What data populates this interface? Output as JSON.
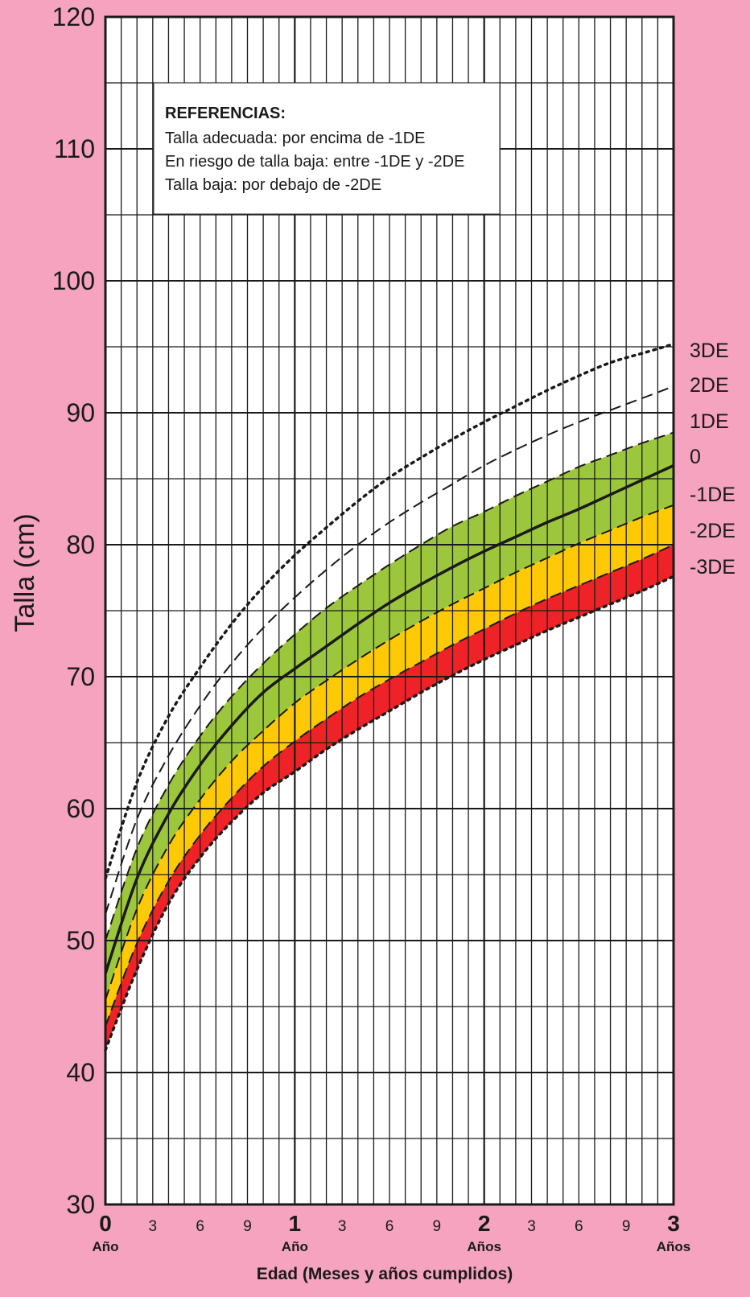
{
  "chart_data": {
    "type": "line",
    "ylabel": "Talla (cm)",
    "xlabel": "Edad (Meses y años cumplidos)",
    "ylim": [
      30,
      120
    ],
    "xlim": [
      0,
      36
    ],
    "yticks": [
      "30",
      "40",
      "50",
      "60",
      "70",
      "80",
      "90",
      "100",
      "110",
      "120"
    ],
    "xticks_major": [
      {
        "month": 0,
        "label": "0",
        "sub": "Año"
      },
      {
        "month": 12,
        "label": "1",
        "sub": "Año"
      },
      {
        "month": 24,
        "label": "2",
        "sub": "Años"
      },
      {
        "month": 36,
        "label": "3",
        "sub": "Años"
      }
    ],
    "xticks_minor": [
      {
        "month": 3,
        "label": "3"
      },
      {
        "month": 6,
        "label": "6"
      },
      {
        "month": 9,
        "label": "9"
      },
      {
        "month": 15,
        "label": "3"
      },
      {
        "month": 18,
        "label": "6"
      },
      {
        "month": 21,
        "label": "9"
      },
      {
        "month": 27,
        "label": "3"
      },
      {
        "month": 30,
        "label": "6"
      },
      {
        "month": 33,
        "label": "9"
      }
    ],
    "grid": true,
    "x": [
      0,
      2,
      4,
      6,
      8,
      10,
      12,
      14,
      16,
      18,
      20,
      22,
      24,
      26,
      28,
      30,
      32,
      34,
      36
    ],
    "series": [
      {
        "name": "3DE",
        "style": "dotted",
        "values": [
          54.7,
          62.0,
          67.0,
          70.7,
          74.0,
          76.8,
          79.2,
          81.3,
          83.3,
          85.1,
          86.6,
          88.0,
          89.3,
          90.5,
          91.7,
          92.8,
          93.8,
          94.5,
          95.2
        ]
      },
      {
        "name": "2DE",
        "style": "dashed",
        "values": [
          52.0,
          59.2,
          64.0,
          67.8,
          71.0,
          73.7,
          76.0,
          78.1,
          80.0,
          81.7,
          83.2,
          84.6,
          86.0,
          87.2,
          88.3,
          89.3,
          90.2,
          91.1,
          92.0
        ]
      },
      {
        "name": "1DE",
        "style": "dashed",
        "values": [
          50.0,
          57.0,
          61.8,
          65.5,
          68.5,
          71.0,
          73.2,
          75.2,
          76.9,
          78.5,
          80.0,
          81.4,
          82.5,
          83.7,
          84.8,
          85.9,
          86.8,
          87.7,
          88.5
        ]
      },
      {
        "name": "0",
        "style": "solid",
        "values": [
          47.5,
          54.7,
          59.6,
          63.3,
          66.3,
          68.8,
          70.6,
          72.3,
          74.0,
          75.6,
          77.0,
          78.3,
          79.5,
          80.6,
          81.7,
          82.7,
          83.8,
          84.9,
          86.0
        ]
      },
      {
        "name": "-1DE",
        "style": "dashed",
        "values": [
          45.5,
          52.4,
          57.2,
          60.7,
          63.6,
          65.9,
          68.0,
          69.7,
          71.3,
          72.8,
          74.2,
          75.5,
          76.7,
          77.9,
          79.0,
          80.1,
          81.1,
          82.1,
          83.0
        ]
      },
      {
        "name": "-2DE",
        "style": "dashed",
        "values": [
          43.5,
          49.8,
          54.5,
          58.0,
          60.8,
          63.2,
          65.1,
          66.8,
          68.4,
          69.8,
          71.1,
          72.4,
          73.6,
          74.8,
          75.9,
          76.9,
          77.9,
          78.9,
          80.0
        ]
      },
      {
        "name": "-3DE",
        "style": "dotted",
        "values": [
          41.7,
          47.8,
          52.8,
          56.3,
          59.0,
          61.2,
          62.8,
          64.5,
          66.0,
          67.4,
          68.8,
          70.1,
          71.3,
          72.4,
          73.5,
          74.5,
          75.5,
          76.5,
          77.6
        ]
      }
    ],
    "bands": [
      {
        "from": "1DE",
        "to": "0",
        "color": "#9CC73C"
      },
      {
        "from": "0",
        "to": "-1DE",
        "color": "#9CC73C"
      },
      {
        "from": "-1DE",
        "to": "-2DE",
        "color": "#FFCA05"
      },
      {
        "from": "-2DE",
        "to": "-3DE",
        "color": "#EE2227"
      }
    ],
    "legend": {
      "title": "REFERENCIAS:",
      "items": [
        "Talla adecuada: por encima de -1DE",
        "En riesgo de talla baja: entre -1DE y -2DE",
        "Talla baja: por debajo de -2DE"
      ],
      "position": "top-left"
    },
    "colors": {
      "background": "#F5A3BE",
      "plot": "#FFFFFF",
      "line": "#1a1a1a"
    }
  }
}
